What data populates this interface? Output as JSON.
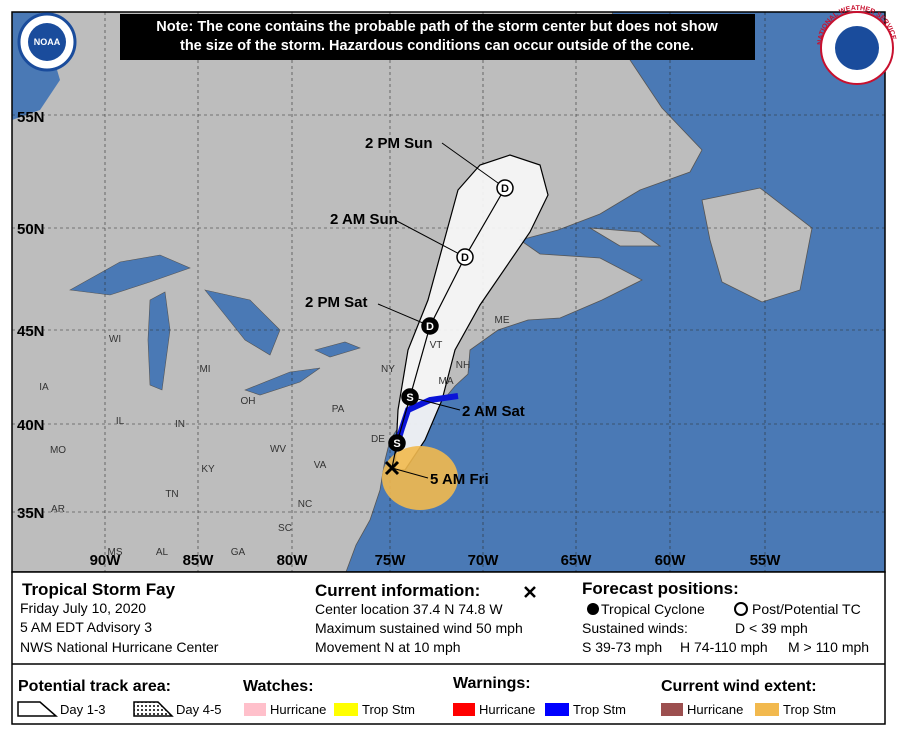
{
  "note": {
    "lines": [
      "Note: The cone contains the probable path of the storm center but does not show",
      "the size of the storm. Hazardous conditions can occur outside of the cone."
    ]
  },
  "logos": {
    "noaa": "NOAA",
    "nws": "NATIONAL WEATHER SERVICE"
  },
  "map": {
    "lat_labels": [
      "55N",
      "50N",
      "45N",
      "40N",
      "35N"
    ],
    "lon_labels": [
      "90W",
      "85W",
      "80W",
      "75W",
      "70W",
      "65W",
      "60W",
      "55W"
    ],
    "state_labels": [
      "WI",
      "MI",
      "IA",
      "IL",
      "IN",
      "OH",
      "PA",
      "NY",
      "VT",
      "NH",
      "ME",
      "MA",
      "MO",
      "KY",
      "WV",
      "VA",
      "TN",
      "NC",
      "SC",
      "GA",
      "AL",
      "MS",
      "AR",
      "DE"
    ],
    "markers": [
      "D",
      "D",
      "D",
      "S",
      "S"
    ],
    "time_labels": [
      "2 PM Sun",
      "2 AM Sun",
      "2 PM Sat",
      "2 AM Sat",
      "5 AM Fri"
    ]
  },
  "info": {
    "storm": {
      "title": "Tropical Storm Fay",
      "lines": [
        "Friday July 10, 2020",
        "5 AM EDT Advisory 3",
        "NWS National Hurricane Center"
      ]
    },
    "current": {
      "title": "Current information:",
      "lines": [
        "Center location 37.4 N 74.8 W",
        "Maximum sustained wind 50 mph",
        "Movement N at 10 mph"
      ]
    },
    "forecast": {
      "title": "Forecast positions:",
      "tropical": "Tropical Cyclone",
      "post": "Post/Potential TC",
      "winds_title": "Sustained winds:",
      "d": "D < 39 mph",
      "s": "S 39-73 mph",
      "h": "H 74-110 mph",
      "m": "M > 110 mph"
    }
  },
  "legend": {
    "track": {
      "title": "Potential track area:",
      "day13": "Day 1-3",
      "day45": "Day 4-5"
    },
    "watches": {
      "title": "Watches:",
      "hurricane": "Hurricane",
      "tropstm": "Trop Stm"
    },
    "warnings": {
      "title": "Warnings:",
      "hurricane": "Hurricane",
      "tropstm": "Trop Stm"
    },
    "wind": {
      "title": "Current wind extent:",
      "hurricane": "Hurricane",
      "tropstm": "Trop Stm"
    }
  }
}
